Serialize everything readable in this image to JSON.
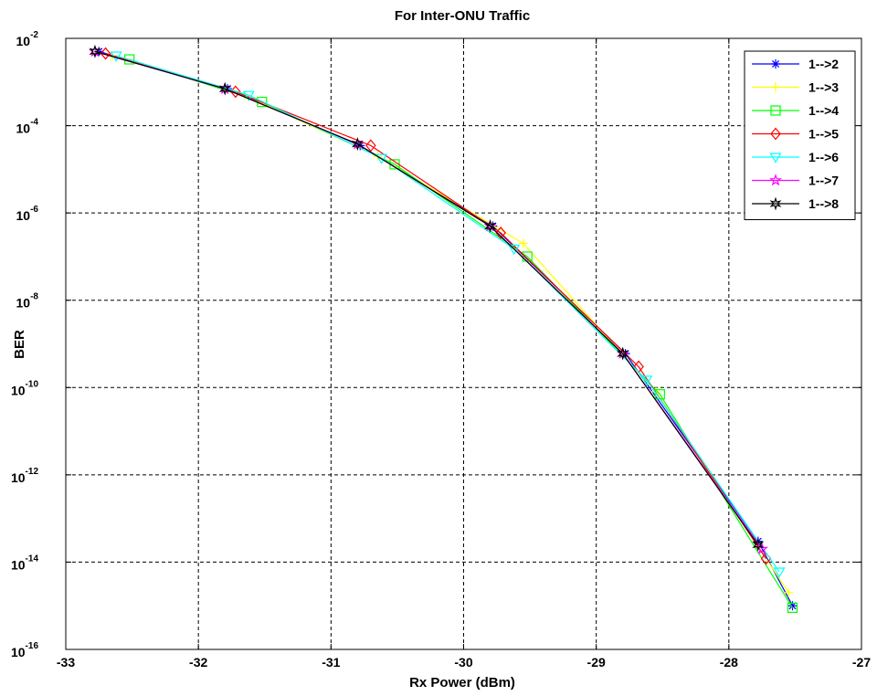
{
  "chart_data": {
    "type": "line",
    "title": "For Inter-ONU Traffic",
    "xlabel": "Rx Power (dBm)",
    "ylabel": "BER",
    "xlim": [
      -33,
      -27
    ],
    "ylim_log10": [
      -16,
      -2
    ],
    "yscale": "log",
    "grid": true,
    "legend_position": "top-right",
    "x_ticks": [
      "-33",
      "-32",
      "-31",
      "-30",
      "-29",
      "-28",
      "-27"
    ],
    "y_ticks": [
      {
        "base": "10",
        "exp": "-2"
      },
      {
        "base": "10",
        "exp": "-4"
      },
      {
        "base": "10",
        "exp": "-6"
      },
      {
        "base": "10",
        "exp": "-8"
      },
      {
        "base": "10",
        "exp": "-10"
      },
      {
        "base": "10",
        "exp": "-12"
      },
      {
        "base": "10",
        "exp": "-14"
      },
      {
        "base": "10",
        "exp": "-16"
      }
    ],
    "series": [
      {
        "name": "1-->2",
        "color": "#0000ff",
        "marker": "star",
        "x": [
          -32.75,
          -31.78,
          -30.78,
          -29.78,
          -28.78,
          -27.78,
          -27.52
        ],
        "y": [
          0.005,
          0.0007,
          3.5e-05,
          5e-07,
          6e-10,
          3e-14,
          1e-15
        ]
      },
      {
        "name": "1-->3",
        "color": "#ffff00",
        "marker": "plus",
        "x": [
          -32.65,
          -31.65,
          -30.65,
          -29.55,
          -28.55,
          -27.55
        ],
        "y": [
          0.004,
          0.0005,
          2e-05,
          2e-07,
          8e-11,
          2e-15
        ]
      },
      {
        "name": "1-->4",
        "color": "#00ff00",
        "marker": "square",
        "x": [
          -32.52,
          -31.52,
          -30.52,
          -29.52,
          -28.52,
          -27.52
        ],
        "y": [
          0.0033,
          0.00035,
          1.3e-05,
          1e-07,
          7e-11,
          9e-16
        ]
      },
      {
        "name": "1-->5",
        "color": "#ff0000",
        "marker": "diamond",
        "x": [
          -32.7,
          -31.72,
          -30.7,
          -29.72,
          -28.68,
          -27.72
        ],
        "y": [
          0.0045,
          0.0006,
          3.5e-05,
          3.5e-07,
          3e-10,
          1.2e-14
        ]
      },
      {
        "name": "1-->6",
        "color": "#00ffff",
        "marker": "triangle-down",
        "x": [
          -32.62,
          -31.62,
          -30.62,
          -29.62,
          -28.62,
          -27.62
        ],
        "y": [
          0.004,
          0.0005,
          1.8e-05,
          1.5e-07,
          1.5e-10,
          6e-15
        ]
      },
      {
        "name": "1-->7",
        "color": "#ff00ff",
        "marker": "pentagram",
        "x": [
          -32.78,
          -31.8,
          -30.8,
          -29.8,
          -28.8,
          -27.75
        ],
        "y": [
          0.005,
          0.0007,
          3.8e-05,
          5e-07,
          6e-10,
          2e-14
        ]
      },
      {
        "name": "1-->8",
        "color": "#000000",
        "marker": "hexagram",
        "x": [
          -32.78,
          -31.8,
          -30.8,
          -29.8,
          -28.8,
          -27.78
        ],
        "y": [
          0.005,
          0.0007,
          3.8e-05,
          5e-07,
          6e-10,
          2.5e-14
        ]
      }
    ]
  }
}
